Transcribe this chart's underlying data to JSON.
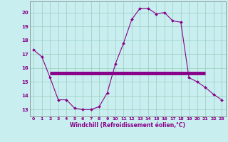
{
  "xlabel": "Windchill (Refroidissement éolien,°C)",
  "bg_color": "#c8eef0",
  "grid_color": "#99ccbb",
  "line1_color": "#880088",
  "line2_color": "#880088",
  "line1_x": [
    0,
    1,
    2,
    3,
    4,
    5,
    6,
    7,
    8,
    9,
    10,
    11,
    12,
    13,
    14,
    15,
    16,
    17,
    18,
    19,
    20,
    21,
    22,
    23
  ],
  "line1_y": [
    17.3,
    16.8,
    15.3,
    13.7,
    13.7,
    13.1,
    13.0,
    13.0,
    13.2,
    14.2,
    16.3,
    17.8,
    19.5,
    20.3,
    20.3,
    19.9,
    20.0,
    19.4,
    19.3,
    15.3,
    15.0,
    14.6,
    14.1,
    13.7
  ],
  "line2_x": [
    2,
    21
  ],
  "line2_y": [
    15.6,
    15.6
  ],
  "ylim": [
    12.5,
    20.8
  ],
  "xlim": [
    -0.5,
    23.5
  ],
  "yticks": [
    13,
    14,
    15,
    16,
    17,
    18,
    19,
    20
  ],
  "xticks": [
    0,
    1,
    2,
    3,
    4,
    5,
    6,
    7,
    8,
    9,
    10,
    11,
    12,
    13,
    14,
    15,
    16,
    17,
    18,
    19,
    20,
    21,
    22,
    23
  ]
}
